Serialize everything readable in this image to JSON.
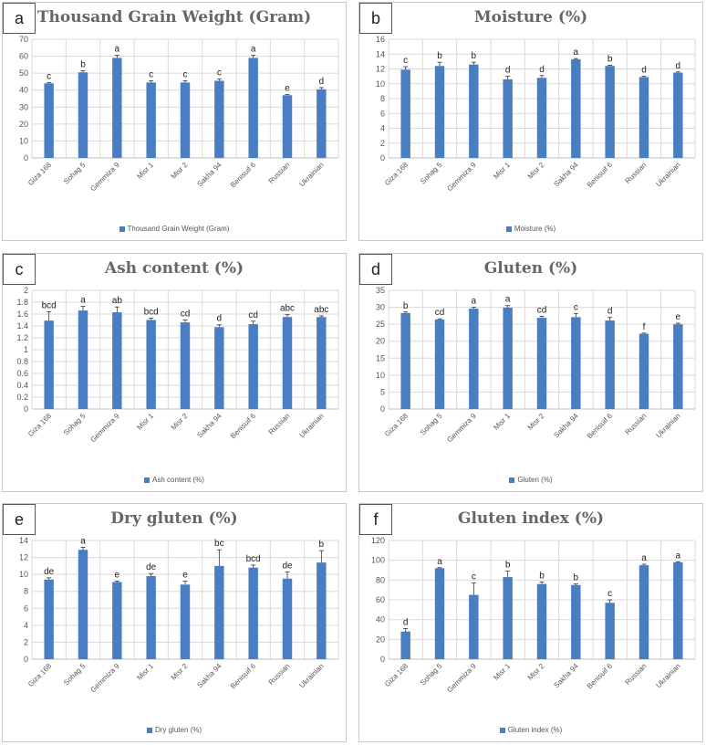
{
  "chart_data": [
    {
      "type": "bar",
      "panel_label": "a",
      "title": "Thousand Grain Weight (Gram)",
      "legend": "Thousand Grain Weight (Gram)",
      "categories": [
        "Giza 168",
        "Sohag 5",
        "Gemmiza 9",
        "Misr 1",
        "Misr 2",
        "Sakha 94",
        "Benisuif 6",
        "Russian",
        "Ukrainian"
      ],
      "values": [
        44,
        50.5,
        59,
        44.5,
        44.5,
        45.5,
        59,
        37,
        40.5
      ],
      "errors": [
        0.5,
        1,
        1.5,
        1,
        1,
        1,
        1.5,
        0.4,
        1
      ],
      "letters": [
        "c",
        "b",
        "a",
        "c",
        "c",
        "c",
        "a",
        "e",
        "d"
      ],
      "ylim": [
        0,
        70
      ],
      "yticks": [
        0,
        10,
        20,
        30,
        40,
        50,
        60,
        70
      ],
      "color": "#4a7ec3",
      "grid": true,
      "legend_position": "bottom"
    },
    {
      "type": "bar",
      "panel_label": "b",
      "title": "Moisture (%)",
      "legend": "Moisture (%)",
      "categories": [
        "Giza 168",
        "Sohag 5",
        "Gemmiza 9",
        "Misr 1",
        "Misr 2",
        "Sakha 94",
        "Benisuif 6",
        "Russian",
        "Ukrainian"
      ],
      "values": [
        11.9,
        12.4,
        12.6,
        10.6,
        10.8,
        13.3,
        12.4,
        10.9,
        11.5
      ],
      "errors": [
        0.4,
        0.5,
        0.3,
        0.4,
        0.3,
        0.1,
        0.1,
        0.1,
        0.1
      ],
      "letters": [
        "c",
        "b",
        "b",
        "d",
        "d",
        "a",
        "b",
        "d",
        "d"
      ],
      "ylim": [
        0,
        16
      ],
      "yticks": [
        0,
        2,
        4,
        6,
        8,
        10,
        12,
        14,
        16
      ],
      "color": "#4a7ec3",
      "grid": true,
      "legend_position": "bottom"
    },
    {
      "type": "bar",
      "panel_label": "c",
      "title": "Ash content (%)",
      "legend": "Ash content (%)",
      "categories": [
        "Giza 168",
        "Sohag 5",
        "Gemmiza 9",
        "Misr 1",
        "Misr 2",
        "Sakha 94",
        "Benisuif 6",
        "Russian",
        "Ukrainian"
      ],
      "values": [
        1.49,
        1.66,
        1.63,
        1.5,
        1.46,
        1.38,
        1.43,
        1.55,
        1.55
      ],
      "errors": [
        0.15,
        0.07,
        0.09,
        0.03,
        0.04,
        0.04,
        0.05,
        0.04,
        0.02
      ],
      "letters": [
        "bcd",
        "a",
        "ab",
        "bcd",
        "cd",
        "d",
        "cd",
        "abc",
        "abc"
      ],
      "ylim": [
        0,
        2
      ],
      "yticks": [
        0,
        0.2,
        0.4,
        0.6,
        0.8,
        1,
        1.2,
        1.4,
        1.6,
        1.8,
        2
      ],
      "color": "#4a7ec3",
      "grid": true,
      "legend_position": "bottom"
    },
    {
      "type": "bar",
      "panel_label": "d",
      "title": "Gluten (%)",
      "legend": "Gluten (%)",
      "categories": [
        "Giza 168",
        "Sohag 5",
        "Gemmiza 9",
        "Misr 1",
        "Misr 2",
        "Sakha 94",
        "Benisuif 6",
        "Russian",
        "Ukrainian"
      ],
      "values": [
        28.3,
        26.4,
        29.6,
        29.9,
        26.9,
        27.1,
        26.1,
        22.2,
        25
      ],
      "errors": [
        0.3,
        0.2,
        0.4,
        0.6,
        0.4,
        1.1,
        0.9,
        0.2,
        0.3
      ],
      "letters": [
        "b",
        "cd",
        "a",
        "a",
        "cd",
        "c",
        "d",
        "f",
        "e"
      ],
      "ylim": [
        0,
        35
      ],
      "yticks": [
        0,
        5,
        10,
        15,
        20,
        25,
        30,
        35
      ],
      "color": "#4a7ec3",
      "grid": true,
      "legend_position": "bottom"
    },
    {
      "type": "bar",
      "panel_label": "e",
      "title": "Dry gluten (%)",
      "legend": "Dry gluten (%)",
      "categories": [
        "Giza 168",
        "Sohag 5",
        "Gemmiza 9",
        "Misr 1",
        "Misr 2",
        "Sakha 94",
        "Benisuif 6",
        "Russian",
        "Ukrainian"
      ],
      "values": [
        9.4,
        12.9,
        9.1,
        9.8,
        8.8,
        11,
        10.8,
        9.5,
        11.4
      ],
      "errors": [
        0.2,
        0.3,
        0.1,
        0.3,
        0.4,
        1.9,
        0.3,
        0.8,
        1.4
      ],
      "letters": [
        "de",
        "a",
        "e",
        "de",
        "e",
        "bc",
        "bcd",
        "de",
        "b"
      ],
      "ylim": [
        0,
        14
      ],
      "yticks": [
        0,
        2,
        4,
        6,
        8,
        10,
        12,
        14
      ],
      "color": "#4a7ec3",
      "grid": true,
      "legend_position": "bottom"
    },
    {
      "type": "bar",
      "panel_label": "f",
      "title": "Gluten index (%)",
      "legend": "Gluten index (%)",
      "categories": [
        "Giza 168",
        "Sohag 5",
        "Gemmiza 9",
        "Misr 1",
        "Misr 2",
        "Sakha 94",
        "Benisuif 6",
        "Russian",
        "Ukrainian"
      ],
      "values": [
        28,
        92,
        65,
        83,
        76,
        75,
        57,
        95,
        98
      ],
      "errors": [
        3,
        0.5,
        12,
        6,
        2,
        1,
        3,
        1,
        0.5
      ],
      "letters": [
        "d",
        "a",
        "c",
        "b",
        "b",
        "b",
        "c",
        "a",
        "a"
      ],
      "ylim": [
        0,
        120
      ],
      "yticks": [
        0,
        20,
        40,
        60,
        80,
        100,
        120
      ],
      "color": "#4a7ec3",
      "grid": true,
      "legend_position": "bottom"
    }
  ]
}
